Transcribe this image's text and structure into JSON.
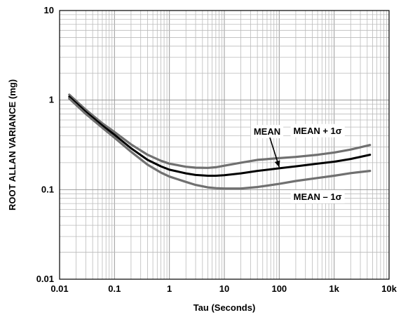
{
  "chart_data": {
    "type": "line",
    "title": "",
    "xlabel": "Tau (Seconds)",
    "ylabel": "ROOT ALLAN VARIANCE (mg)",
    "xscale": "log",
    "yscale": "log",
    "xlim": [
      0.01,
      10000
    ],
    "ylim": [
      0.01,
      10
    ],
    "grid": true,
    "x_ticks": [
      "0.01",
      "0.1",
      "1",
      "10",
      "100",
      "1k",
      "10k"
    ],
    "y_ticks": [
      "10",
      "1",
      "0.1",
      "0.01"
    ],
    "series": [
      {
        "name": "MEAN + 1σ",
        "color": "#707070",
        "x": [
          0.015,
          0.03,
          0.06,
          0.1,
          0.2,
          0.4,
          0.7,
          1,
          2,
          3,
          5,
          7,
          10,
          20,
          40,
          100,
          200,
          500,
          1000,
          2000,
          4500
        ],
        "y": [
          1.15,
          0.78,
          0.55,
          0.44,
          0.32,
          0.245,
          0.21,
          0.195,
          0.18,
          0.176,
          0.175,
          0.178,
          0.185,
          0.2,
          0.215,
          0.225,
          0.232,
          0.245,
          0.26,
          0.28,
          0.315
        ]
      },
      {
        "name": "MEAN",
        "color": "#000000",
        "x": [
          0.015,
          0.03,
          0.06,
          0.1,
          0.2,
          0.4,
          0.7,
          1,
          2,
          3,
          5,
          7,
          10,
          20,
          40,
          100,
          200,
          500,
          1000,
          2000,
          4500
        ],
        "y": [
          1.09,
          0.74,
          0.52,
          0.41,
          0.29,
          0.215,
          0.182,
          0.167,
          0.152,
          0.146,
          0.143,
          0.143,
          0.145,
          0.152,
          0.162,
          0.173,
          0.182,
          0.195,
          0.205,
          0.22,
          0.245
        ]
      },
      {
        "name": "MEAN – 1σ",
        "color": "#707070",
        "x": [
          0.015,
          0.03,
          0.06,
          0.1,
          0.2,
          0.4,
          0.7,
          1,
          2,
          3,
          5,
          7,
          10,
          20,
          40,
          100,
          200,
          500,
          1000,
          2000,
          4500
        ],
        "y": [
          1.04,
          0.7,
          0.49,
          0.38,
          0.265,
          0.19,
          0.155,
          0.14,
          0.122,
          0.113,
          0.106,
          0.104,
          0.103,
          0.103,
          0.107,
          0.116,
          0.125,
          0.135,
          0.143,
          0.153,
          0.162
        ]
      }
    ],
    "annotations": [
      {
        "text": "MEAN",
        "x": 60,
        "y": 0.41
      },
      {
        "text": "MEAN + 1σ",
        "x": 500,
        "y": 0.42
      },
      {
        "text": "MEAN – 1σ",
        "x": 500,
        "y": 0.077
      }
    ]
  }
}
